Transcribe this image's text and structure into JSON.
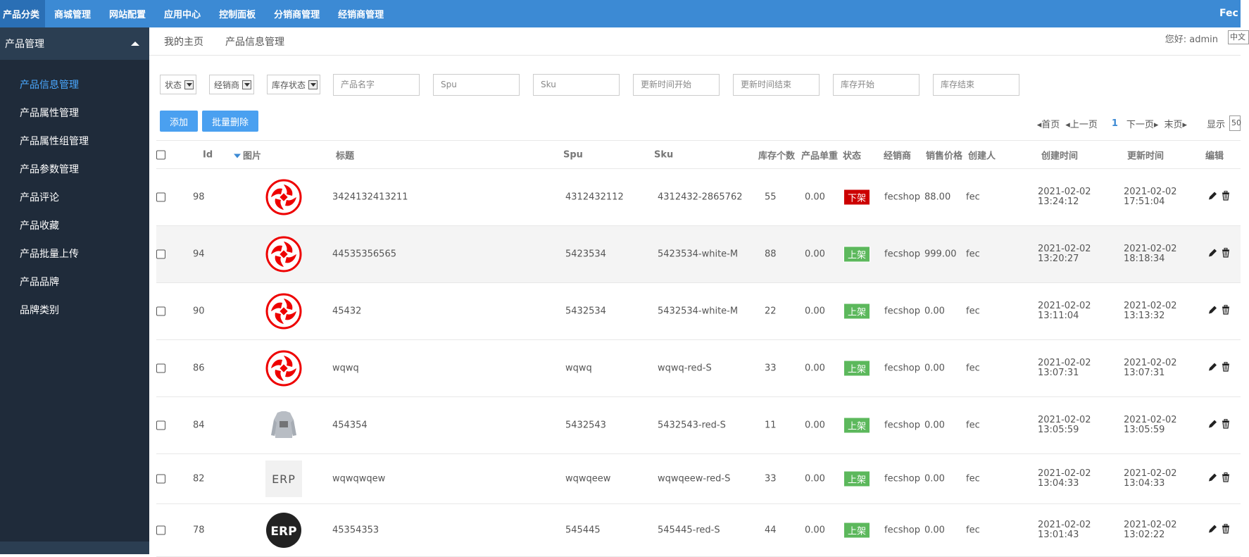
{
  "topnav": {
    "items": [
      "产品分类",
      "商城管理",
      "网站配置",
      "应用中心",
      "控制面板",
      "分销商管理",
      "经销商管理"
    ],
    "brand": "Fec"
  },
  "sidebar": {
    "title": "产品管理",
    "items": [
      "产品信息管理",
      "产品属性管理",
      "产品属性组管理",
      "产品参数管理",
      "产品评论",
      "产品收藏",
      "产品批量上传",
      "产品品牌",
      "品牌类别"
    ]
  },
  "tabs": [
    "我的主页",
    "产品信息管理"
  ],
  "greeting": "您好: admin",
  "language": "中文",
  "filters": {
    "selects": [
      "状态",
      "经销商",
      "库存状态"
    ],
    "inputs": [
      "产品名字",
      "Spu",
      "Sku",
      "更新时间开始",
      "更新时间结束",
      "库存开始",
      "库存结束"
    ]
  },
  "actions": {
    "add": "添加",
    "batch_delete": "批量删除"
  },
  "pager": {
    "first": "首页",
    "prev": "上一页",
    "current": "1",
    "next": "下一页",
    "last": "末页",
    "show": "显示",
    "page_size": "50"
  },
  "columns": [
    "Id",
    "图片",
    "标题",
    "Spu",
    "Sku",
    "库存个数",
    "产品单重",
    "状态",
    "经销商",
    "销售价格",
    "创建人",
    "创建时间",
    "更新时间",
    "编辑"
  ],
  "rows": [
    {
      "id": "98",
      "image": "red-logo",
      "title": "3424132413211",
      "spu": "4312432112",
      "sku": "4312432-2865762",
      "qty": "55",
      "weight": "0.00",
      "status": "下架",
      "status_color": "#cc0000",
      "dealer": "fecshop",
      "price": "88.00",
      "creator": "fec",
      "created_date": "2021-02-02",
      "created_time": "13:24:12",
      "updated_date": "2021-02-02",
      "updated_time": "17:51:04"
    },
    {
      "id": "94",
      "image": "red-logo",
      "title": "44535356565",
      "spu": "5423534",
      "sku": "5423534-white-M",
      "qty": "88",
      "weight": "0.00",
      "status": "上架",
      "status_color": "#5cb85c",
      "dealer": "fecshop",
      "price": "999.00",
      "creator": "fec",
      "created_date": "2021-02-02",
      "created_time": "13:20:27",
      "updated_date": "2021-02-02",
      "updated_time": "18:18:34"
    },
    {
      "id": "90",
      "image": "red-logo",
      "title": "45432",
      "spu": "5432534",
      "sku": "5432534-white-M",
      "qty": "22",
      "weight": "0.00",
      "status": "上架",
      "status_color": "#5cb85c",
      "dealer": "fecshop",
      "price": "0.00",
      "creator": "fec",
      "created_date": "2021-02-02",
      "created_time": "13:11:04",
      "updated_date": "2021-02-02",
      "updated_time": "13:13:32"
    },
    {
      "id": "86",
      "image": "red-logo",
      "title": "wqwq",
      "spu": "wqwq",
      "sku": "wqwq-red-S",
      "qty": "33",
      "weight": "0.00",
      "status": "上架",
      "status_color": "#5cb85c",
      "dealer": "fecshop",
      "price": "0.00",
      "creator": "fec",
      "created_date": "2021-02-02",
      "created_time": "13:07:31",
      "updated_date": "2021-02-02",
      "updated_time": "13:07:31"
    },
    {
      "id": "84",
      "image": "sweater-photo",
      "title": "454354",
      "spu": "5432543",
      "sku": "5432543-red-S",
      "qty": "11",
      "weight": "0.00",
      "status": "上架",
      "status_color": "#5cb85c",
      "dealer": "fecshop",
      "price": "0.00",
      "creator": "fec",
      "created_date": "2021-02-02",
      "created_time": "13:05:59",
      "updated_date": "2021-02-02",
      "updated_time": "13:05:59"
    },
    {
      "id": "82",
      "image": "erp-text-logo",
      "title": "wqwqwqew",
      "spu": "wqwqeew",
      "sku": "wqwqeew-red-S",
      "qty": "33",
      "weight": "0.00",
      "status": "上架",
      "status_color": "#5cb85c",
      "dealer": "fecshop",
      "price": "0.00",
      "creator": "fec",
      "created_date": "2021-02-02",
      "created_time": "13:04:33",
      "updated_date": "2021-02-02",
      "updated_time": "13:04:33"
    },
    {
      "id": "78",
      "image": "erp-circle-logo",
      "title": "45354353",
      "spu": "545445",
      "sku": "545445-red-S",
      "qty": "44",
      "weight": "0.00",
      "status": "上架",
      "status_color": "#5cb85c",
      "dealer": "fecshop",
      "price": "0.00",
      "creator": "fec",
      "created_date": "2021-02-02",
      "created_time": "13:01:43",
      "updated_date": "2021-02-02",
      "updated_time": "13:02:22"
    }
  ],
  "logo_text": "ERP",
  "accent_color": "#3c8ad4"
}
